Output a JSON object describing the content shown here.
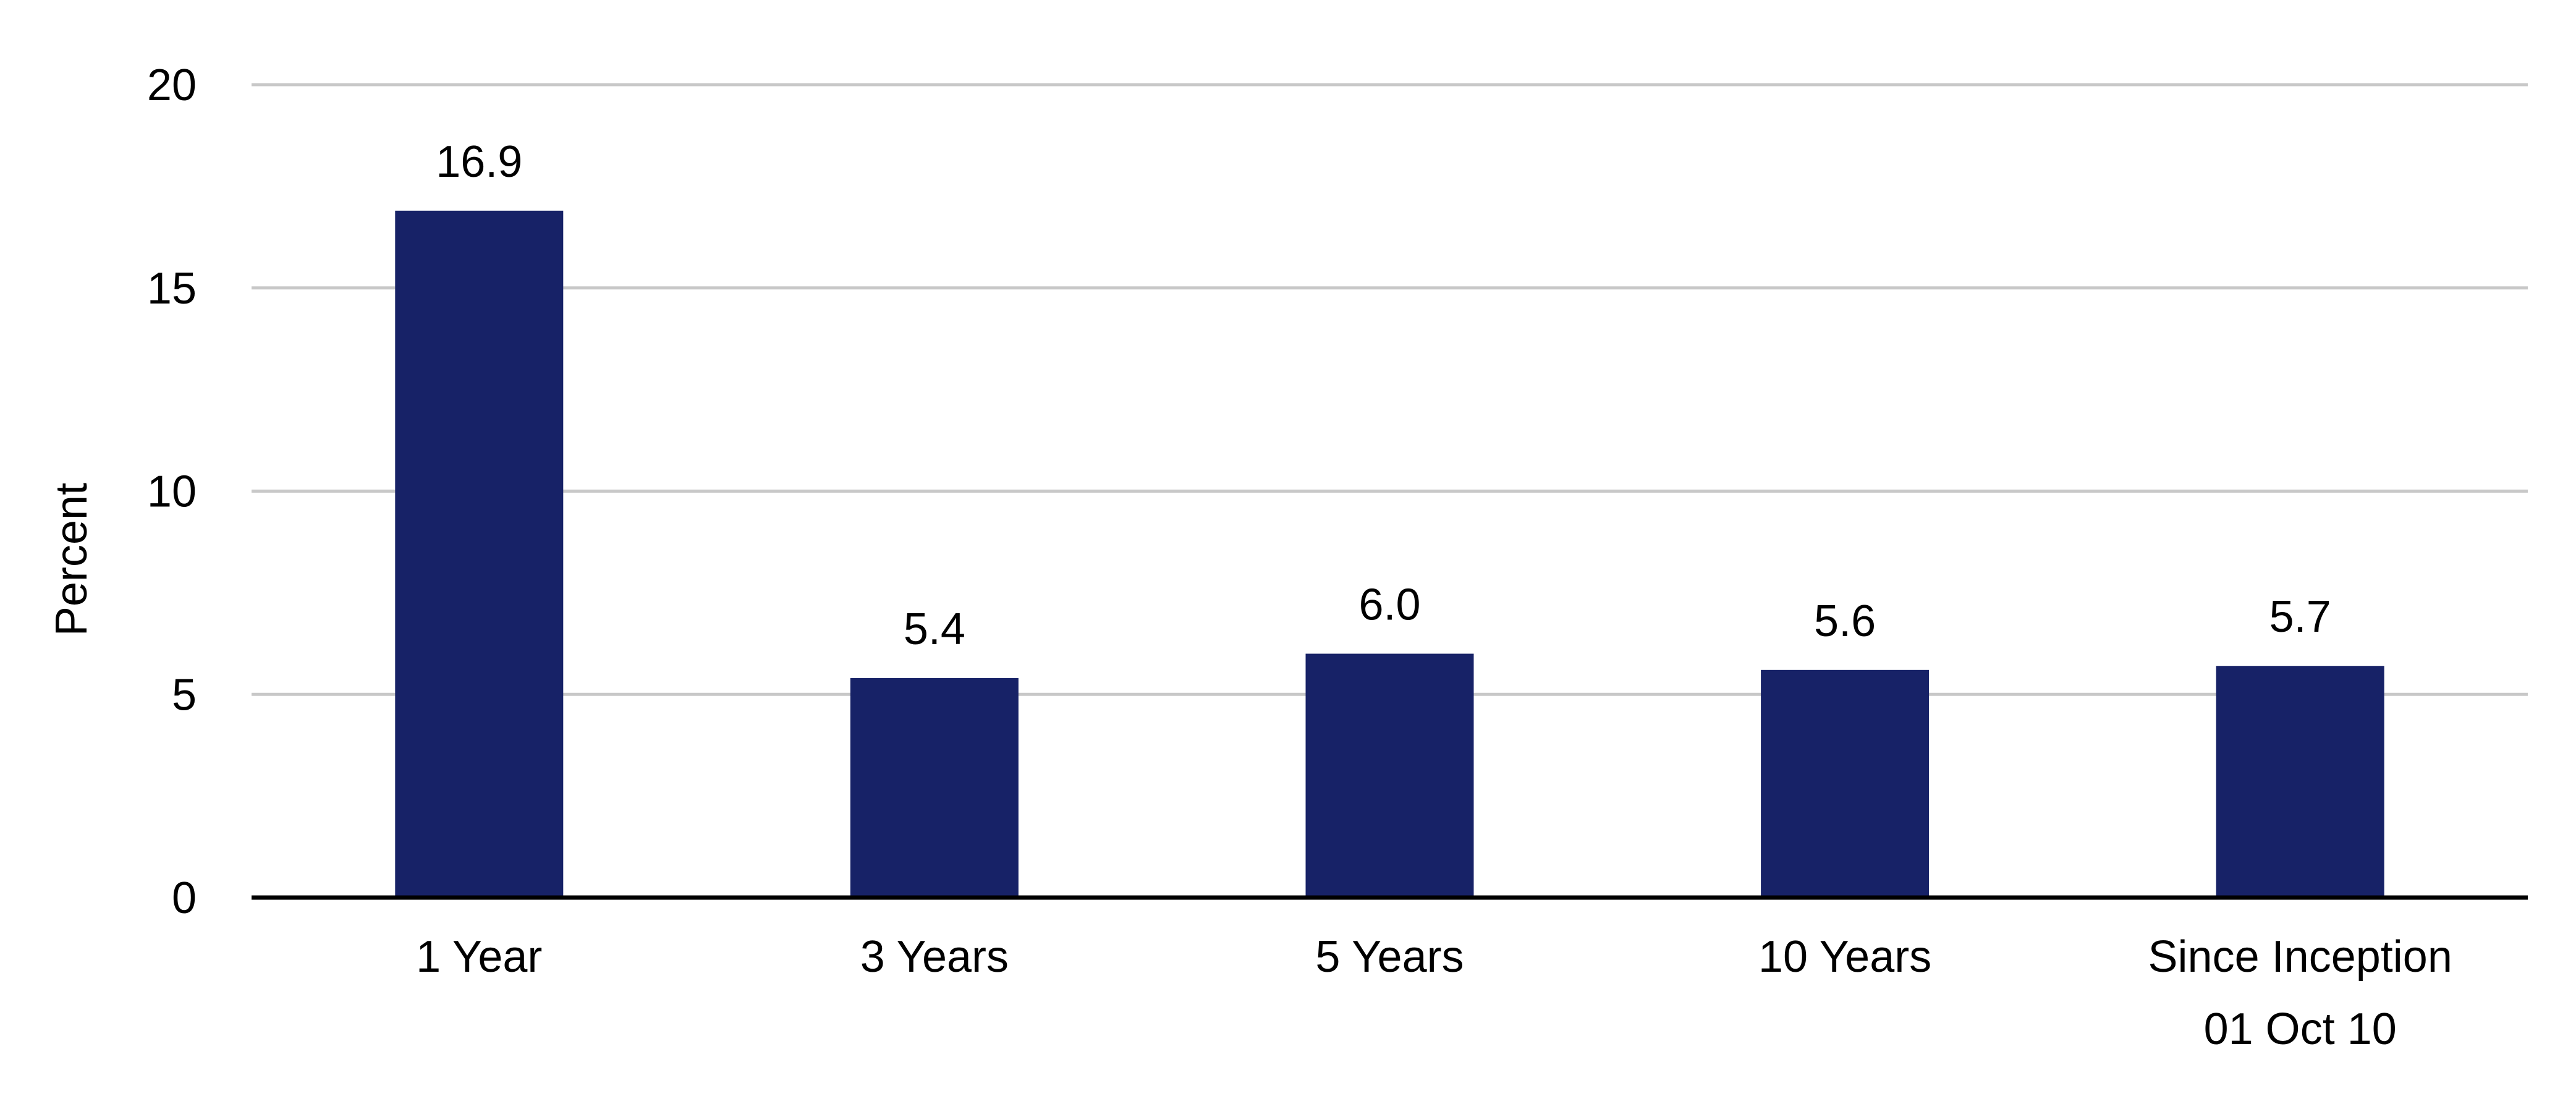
{
  "chart_data": {
    "type": "bar",
    "categories": [
      [
        "1 Year"
      ],
      [
        "3 Years"
      ],
      [
        "5 Years"
      ],
      [
        "10 Years"
      ],
      [
        "Since Inception",
        "01 Oct 10"
      ]
    ],
    "values": [
      16.9,
      5.4,
      6.0,
      5.6,
      5.7
    ],
    "data_labels": [
      "16.9",
      "5.4",
      "6.0",
      "5.6",
      "5.7"
    ],
    "ylabel": "Percent",
    "ylim": [
      0,
      20
    ],
    "yticks": [
      0,
      5,
      10,
      15,
      20
    ],
    "grid": true,
    "colors": {
      "bar": "#172267",
      "grid": "#c8c8c8",
      "axis": "#000000"
    }
  }
}
